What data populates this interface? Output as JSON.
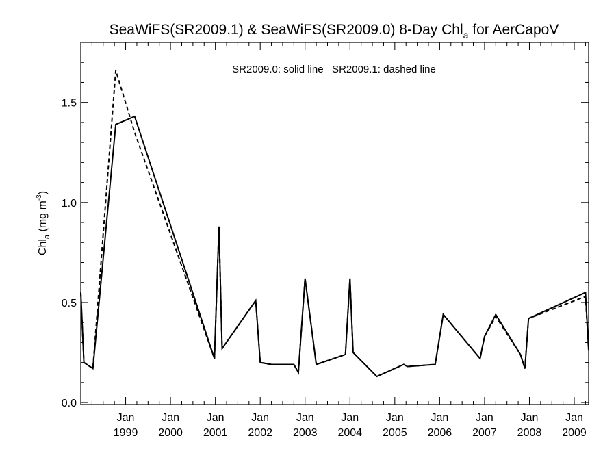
{
  "chart_data": {
    "type": "line",
    "title": {
      "prefix": "SeaWiFS(SR2009.1) & SeaWiFS(SR2009.0) 8-Day Chl",
      "subscript": "a",
      "suffix": " for AerCapoV"
    },
    "annotation": "SR2009.0: solid line   SR2009.1: dashed line",
    "ylabel": {
      "prefix": "Chl",
      "subscript": "a",
      "middle": " (mg m",
      "superscript": "-3",
      "suffix": ")"
    },
    "xlim": [
      1998.0,
      2009.32
    ],
    "ylim": [
      -0.01,
      1.8
    ],
    "grid": false,
    "x_ticks": [
      {
        "month": "Jan",
        "year": "1999",
        "value": 1999.0
      },
      {
        "month": "Jan",
        "year": "2000",
        "value": 2000.0
      },
      {
        "month": "Jan",
        "year": "2001",
        "value": 2001.0
      },
      {
        "month": "Jan",
        "year": "2002",
        "value": 2002.0
      },
      {
        "month": "Jan",
        "year": "2003",
        "value": 2003.0
      },
      {
        "month": "Jan",
        "year": "2004",
        "value": 2004.0
      },
      {
        "month": "Jan",
        "year": "2005",
        "value": 2005.0
      },
      {
        "month": "Jan",
        "year": "2006",
        "value": 2006.0
      },
      {
        "month": "Jan",
        "year": "2007",
        "value": 2007.0
      },
      {
        "month": "Jan",
        "year": "2008",
        "value": 2008.0
      },
      {
        "month": "Jan",
        "year": "2009",
        "value": 2009.0
      }
    ],
    "y_ticks": [
      {
        "label": "0.0",
        "value": 0.0
      },
      {
        "label": "0.5",
        "value": 0.5
      },
      {
        "label": "1.0",
        "value": 1.0
      },
      {
        "label": "1.5",
        "value": 1.5
      }
    ],
    "series": [
      {
        "name": "SR2009.0",
        "style": "solid",
        "points": [
          [
            1998.0,
            0.55
          ],
          [
            1998.07,
            0.2
          ],
          [
            1998.27,
            0.17
          ],
          [
            1998.78,
            1.39
          ],
          [
            1999.2,
            1.43
          ],
          [
            2000.98,
            0.22
          ],
          [
            2001.08,
            0.88
          ],
          [
            2001.15,
            0.27
          ],
          [
            2001.9,
            0.51
          ],
          [
            2002.0,
            0.2
          ],
          [
            2002.25,
            0.19
          ],
          [
            2002.75,
            0.19
          ],
          [
            2002.85,
            0.15
          ],
          [
            2003.0,
            0.62
          ],
          [
            2003.25,
            0.19
          ],
          [
            2003.9,
            0.24
          ],
          [
            2004.0,
            0.62
          ],
          [
            2004.07,
            0.25
          ],
          [
            2004.6,
            0.13
          ],
          [
            2005.2,
            0.19
          ],
          [
            2005.28,
            0.18
          ],
          [
            2005.9,
            0.19
          ],
          [
            2006.08,
            0.44
          ],
          [
            2006.9,
            0.22
          ],
          [
            2007.0,
            0.33
          ],
          [
            2007.25,
            0.44
          ],
          [
            2007.8,
            0.24
          ],
          [
            2007.9,
            0.17
          ],
          [
            2007.98,
            0.42
          ],
          [
            2009.25,
            0.55
          ],
          [
            2009.32,
            0.26
          ]
        ]
      },
      {
        "name": "SR2009.1",
        "style": "dashed",
        "points": [
          [
            1998.0,
            0.55
          ],
          [
            1998.07,
            0.2
          ],
          [
            1998.27,
            0.17
          ],
          [
            1998.78,
            1.66
          ],
          [
            1999.2,
            1.35
          ],
          [
            2000.98,
            0.22
          ],
          [
            2001.08,
            0.88
          ],
          [
            2001.15,
            0.27
          ],
          [
            2001.9,
            0.51
          ],
          [
            2002.0,
            0.2
          ],
          [
            2002.25,
            0.19
          ],
          [
            2002.75,
            0.19
          ],
          [
            2002.85,
            0.15
          ],
          [
            2003.0,
            0.62
          ],
          [
            2003.25,
            0.19
          ],
          [
            2003.9,
            0.24
          ],
          [
            2004.0,
            0.62
          ],
          [
            2004.07,
            0.25
          ],
          [
            2004.6,
            0.13
          ],
          [
            2005.2,
            0.19
          ],
          [
            2005.28,
            0.18
          ],
          [
            2005.9,
            0.19
          ],
          [
            2006.08,
            0.44
          ],
          [
            2006.9,
            0.22
          ],
          [
            2007.0,
            0.33
          ],
          [
            2007.25,
            0.43
          ],
          [
            2007.8,
            0.24
          ],
          [
            2007.9,
            0.17
          ],
          [
            2007.98,
            0.42
          ],
          [
            2009.25,
            0.53
          ],
          [
            2009.32,
            0.26
          ]
        ]
      }
    ],
    "colors": {
      "line": "#000000",
      "axis": "#000000",
      "background": "#ffffff"
    }
  }
}
